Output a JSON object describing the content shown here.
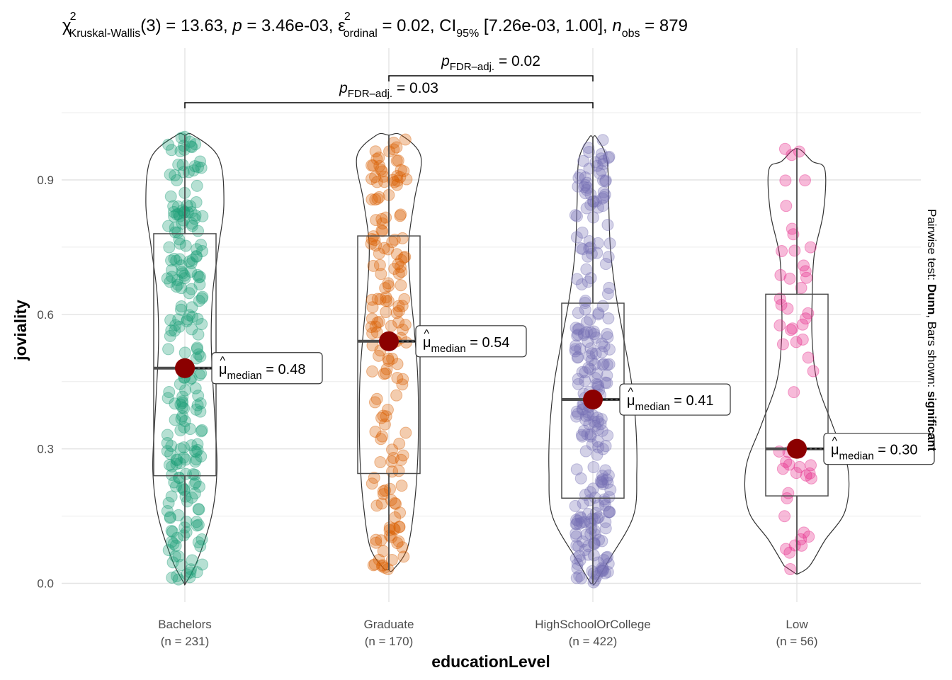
{
  "chart_data": {
    "type": "violin-box-scatter",
    "statistic_text": {
      "chi": "χ",
      "chi_sup": "2",
      "test_sub": "Kruskal-Wallis",
      "part1": "(3) = 13.63, ",
      "p": "p",
      "part2": " = 3.46e-03, ",
      "eps": "ε",
      "eps_sup": "2",
      "eps_sub": "ordinal",
      "part3": " = 0.02, CI",
      "ci_sub": "95%",
      "part4": " [7.26e-03, 1.00], ",
      "n": "n",
      "n_sub": "obs",
      "part5": " = 879"
    },
    "xlabel": "educationLevel",
    "ylabel": "joviality",
    "ylim": [
      -0.04,
      1.08
    ],
    "y_ticks": [
      0.0,
      0.3,
      0.6,
      0.9
    ],
    "y_tick_labels": [
      "0.0",
      "0.3",
      "0.6",
      "0.9"
    ],
    "caption": {
      "prefix": "Pairwise test: ",
      "test": "Dunn",
      "middle": ", Bars shown: ",
      "shown": "significant"
    },
    "groups": [
      {
        "name": "Bachelors",
        "n_label": "(n = 231)",
        "n": 231,
        "color": "#1b9e77",
        "min": 0.0,
        "q1": 0.24,
        "median": 0.48,
        "q3": 0.78,
        "max": 1.0,
        "median_label": "0.48"
      },
      {
        "name": "Graduate",
        "n_label": "(n = 170)",
        "n": 170,
        "color": "#d95f02",
        "min": 0.03,
        "q1": 0.245,
        "median": 0.54,
        "q3": 0.775,
        "max": 1.0,
        "median_label": "0.54"
      },
      {
        "name": "HighSchoolOrCollege",
        "n_label": "(n = 422)",
        "n": 422,
        "color": "#7570b3",
        "min": 0.0,
        "q1": 0.19,
        "median": 0.41,
        "q3": 0.625,
        "max": 0.995,
        "median_label": "0.41"
      },
      {
        "name": "Low",
        "n_label": "(n = 56)",
        "n": 56,
        "color": "#e7298a",
        "min": 0.02,
        "q1": 0.195,
        "median": 0.3,
        "q3": 0.645,
        "max": 0.97,
        "median_label": "0.30"
      }
    ],
    "median_symbol": "μ",
    "median_hat": "^",
    "median_sub": "median",
    "median_eq": " = ",
    "median_color": "#8b0000",
    "pairwise": [
      {
        "from": "Graduate",
        "to": "HighSchoolOrCollege",
        "p_label": "p",
        "p_sub": "FDR–adj.",
        "value_text": " = 0.02"
      },
      {
        "from": "Bachelors",
        "to": "HighSchoolOrCollege",
        "p_label": "p",
        "p_sub": "FDR–adj.",
        "value_text": " = 0.03"
      }
    ]
  }
}
